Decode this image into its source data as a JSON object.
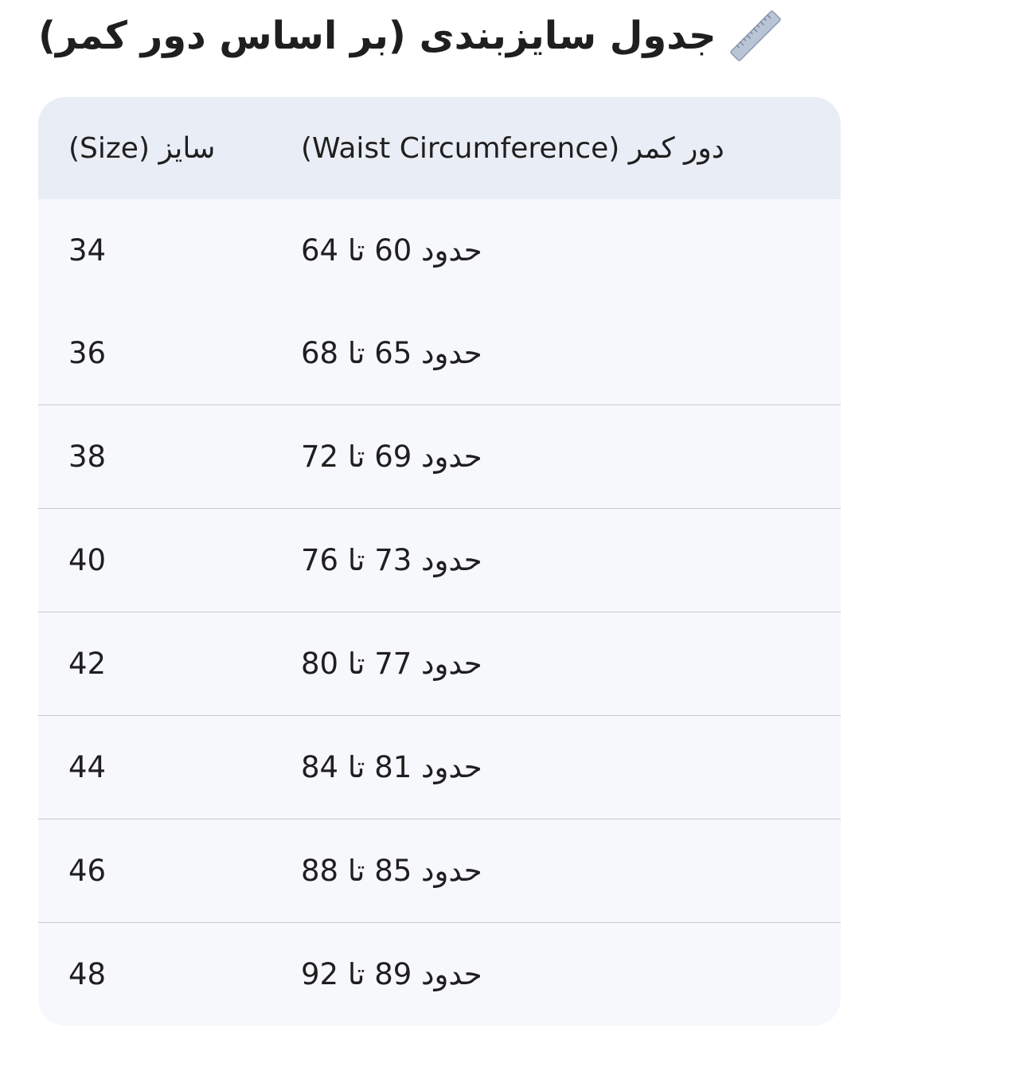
{
  "title": {
    "icon": "ruler-icon",
    "text": "جدول سایزبندی (بر اساس دور کمر)"
  },
  "table": {
    "headers": [
      "سایز (Size)",
      "دور کمر (Waist Circumference)"
    ],
    "rows": [
      [
        "34",
        "حدود 60 تا 64"
      ],
      [
        "36",
        "حدود 65 تا 68"
      ],
      [
        "38",
        "حدود 69 تا 72"
      ],
      [
        "40",
        "حدود 73 تا 76"
      ],
      [
        "42",
        "حدود 77 تا 80"
      ],
      [
        "44",
        "حدود 81 تا 84"
      ],
      [
        "46",
        "حدود 85 تا 88"
      ],
      [
        "48",
        "حدود 89 تا 92"
      ]
    ]
  },
  "colors": {
    "header_bg": "#e9edf5",
    "row_bg": "#f7f8fc",
    "divider": "#c9cacd",
    "text": "#1f1f1f"
  }
}
